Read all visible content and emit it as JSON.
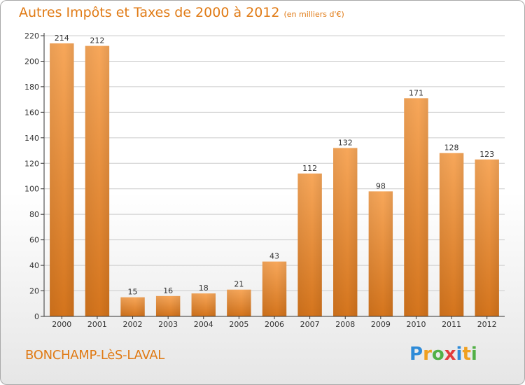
{
  "title": {
    "main": "Autres Impôts et Taxes de 2000 à 2012",
    "unit": "(en milliers d'€)"
  },
  "commune": "BONCHAMP-LèS-LAVAL",
  "logo": {
    "letters": [
      "P",
      "r",
      "o",
      "x",
      "i",
      "t",
      "i"
    ]
  },
  "colors": {
    "title": "#e07a14",
    "bar_light": "#f7a75a",
    "bar_dark": "#d4741c",
    "grid": "#cccccc"
  },
  "chart_data": {
    "type": "bar",
    "title": "Autres Impôts et Taxes de 2000 à 2012",
    "unit_label": "(en milliers d'€)",
    "categories": [
      "2000",
      "2001",
      "2002",
      "2003",
      "2004",
      "2005",
      "2006",
      "2007",
      "2008",
      "2009",
      "2010",
      "2011",
      "2012"
    ],
    "values": [
      214,
      212,
      15,
      16,
      18,
      21,
      43,
      112,
      132,
      98,
      171,
      128,
      123
    ],
    "ylim": [
      0,
      220
    ],
    "yticks": [
      0,
      20,
      40,
      60,
      80,
      100,
      120,
      140,
      160,
      180,
      200,
      220
    ],
    "grid": true,
    "legend": "none"
  }
}
